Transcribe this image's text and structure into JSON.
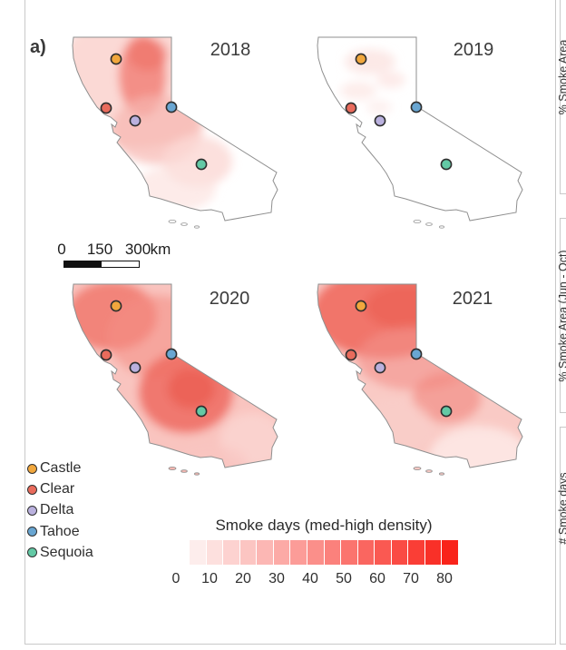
{
  "figure": {
    "panel_label": "a)"
  },
  "maps": [
    {
      "year": "2018"
    },
    {
      "year": "2019"
    },
    {
      "year": "2020"
    },
    {
      "year": "2021"
    }
  ],
  "sites": [
    {
      "id": "castle",
      "label": "Castle",
      "color": "#F1A73D"
    },
    {
      "id": "clear",
      "label": "Clear",
      "color": "#E96B5C"
    },
    {
      "id": "delta",
      "label": "Delta",
      "color": "#BAB1DE"
    },
    {
      "id": "tahoe",
      "label": "Tahoe",
      "color": "#69A6D2"
    },
    {
      "id": "sequoia",
      "label": "Sequoia",
      "color": "#63C9A5"
    }
  ],
  "scalebar": {
    "tick_labels": [
      "0",
      "150",
      "300"
    ],
    "unit": "km"
  },
  "colorbar": {
    "title": "Smoke days (med-high density)",
    "ticks": [
      "0",
      "10",
      "20",
      "30",
      "40",
      "50",
      "60",
      "70",
      "80"
    ],
    "colors": [
      "#FDEDEC",
      "#FDE0DE",
      "#FDD2D0",
      "#FCC5C2",
      "#FCB7B4",
      "#FCAAA6",
      "#FC9C98",
      "#FB8F8A",
      "#FB817C",
      "#FB746E",
      "#FA6660",
      "#FA5952",
      "#FA4B44",
      "#FA3E36",
      "#F93028",
      "#F9231A"
    ]
  },
  "side_panels": [
    {
      "ylabel": "% Smoke Area"
    },
    {
      "ylabel": "% Smoke Area (Jun - Oct)"
    },
    {
      "ylabel": "# Smoke days"
    }
  ],
  "chart_data": {
    "type": "heatmap",
    "title": "Smoke days (med-high density)",
    "region": "California",
    "panel": "a)",
    "years": [
      "2018",
      "2019",
      "2020",
      "2021"
    ],
    "colorbar_ticks": [
      0,
      10,
      20,
      30,
      40,
      50,
      60,
      70,
      80
    ],
    "colorbar_range": [
      0,
      85
    ],
    "sites": [
      "Castle",
      "Clear",
      "Delta",
      "Tahoe",
      "Sequoia"
    ],
    "qualitative_pattern": {
      "2018": "Moderate smoke days (~20-45) in a north-central plume; near zero in the far south and southeast",
      "2019": "Near-zero smoke days statewide; only faint traces (~0-10) in the north",
      "2020": "High smoke days statewide (~20-60); darkest over the northwest and the southern Sierra near Sequoia",
      "2021": "Very high smoke days (~40-70) across northern California, decreasing southward to ~10-20"
    },
    "scale_bar_km": [
      0,
      150,
      300
    ]
  }
}
